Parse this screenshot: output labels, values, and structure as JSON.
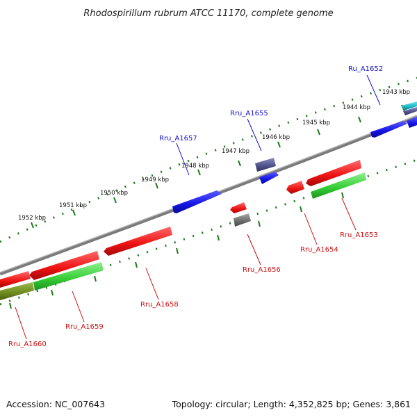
{
  "title": "Rhodospirillum rubrum ATCC 11170, complete genome",
  "footer": {
    "accession": "Accession: NC_007643",
    "summary": "Topology: circular; Length: 4,352,825 bp; Genes: 3,861"
  },
  "colors": {
    "backbone": "#7a7a7a",
    "tick": "#1a7a1a",
    "forward_label": "#1010cc",
    "reverse_label": "#cc1010",
    "blue": "#1414e6",
    "red": "#ee1111",
    "green": "#33cc33",
    "olive": "#6e8a1e",
    "navy": "#50508a",
    "gray": "#6a6a6a",
    "cyan": "#19b4c0"
  },
  "scale_kbp": [
    "1943 kbp",
    "1944 kbp",
    "1945 kbp",
    "1946 kbp",
    "1947 kbp",
    "1948 kbp",
    "1949 kbp",
    "1950 kbp",
    "1951 kbp",
    "1952 kbp"
  ],
  "labels": {
    "forward": [
      "Ru_A1652",
      "Rru_A1655",
      "Rru_A1657"
    ],
    "reverse": [
      "Rru_A1653",
      "Rru_A1654",
      "Rru_A1656",
      "Rru_A1658",
      "Rru_A1659",
      "Rru_A1660"
    ]
  }
}
